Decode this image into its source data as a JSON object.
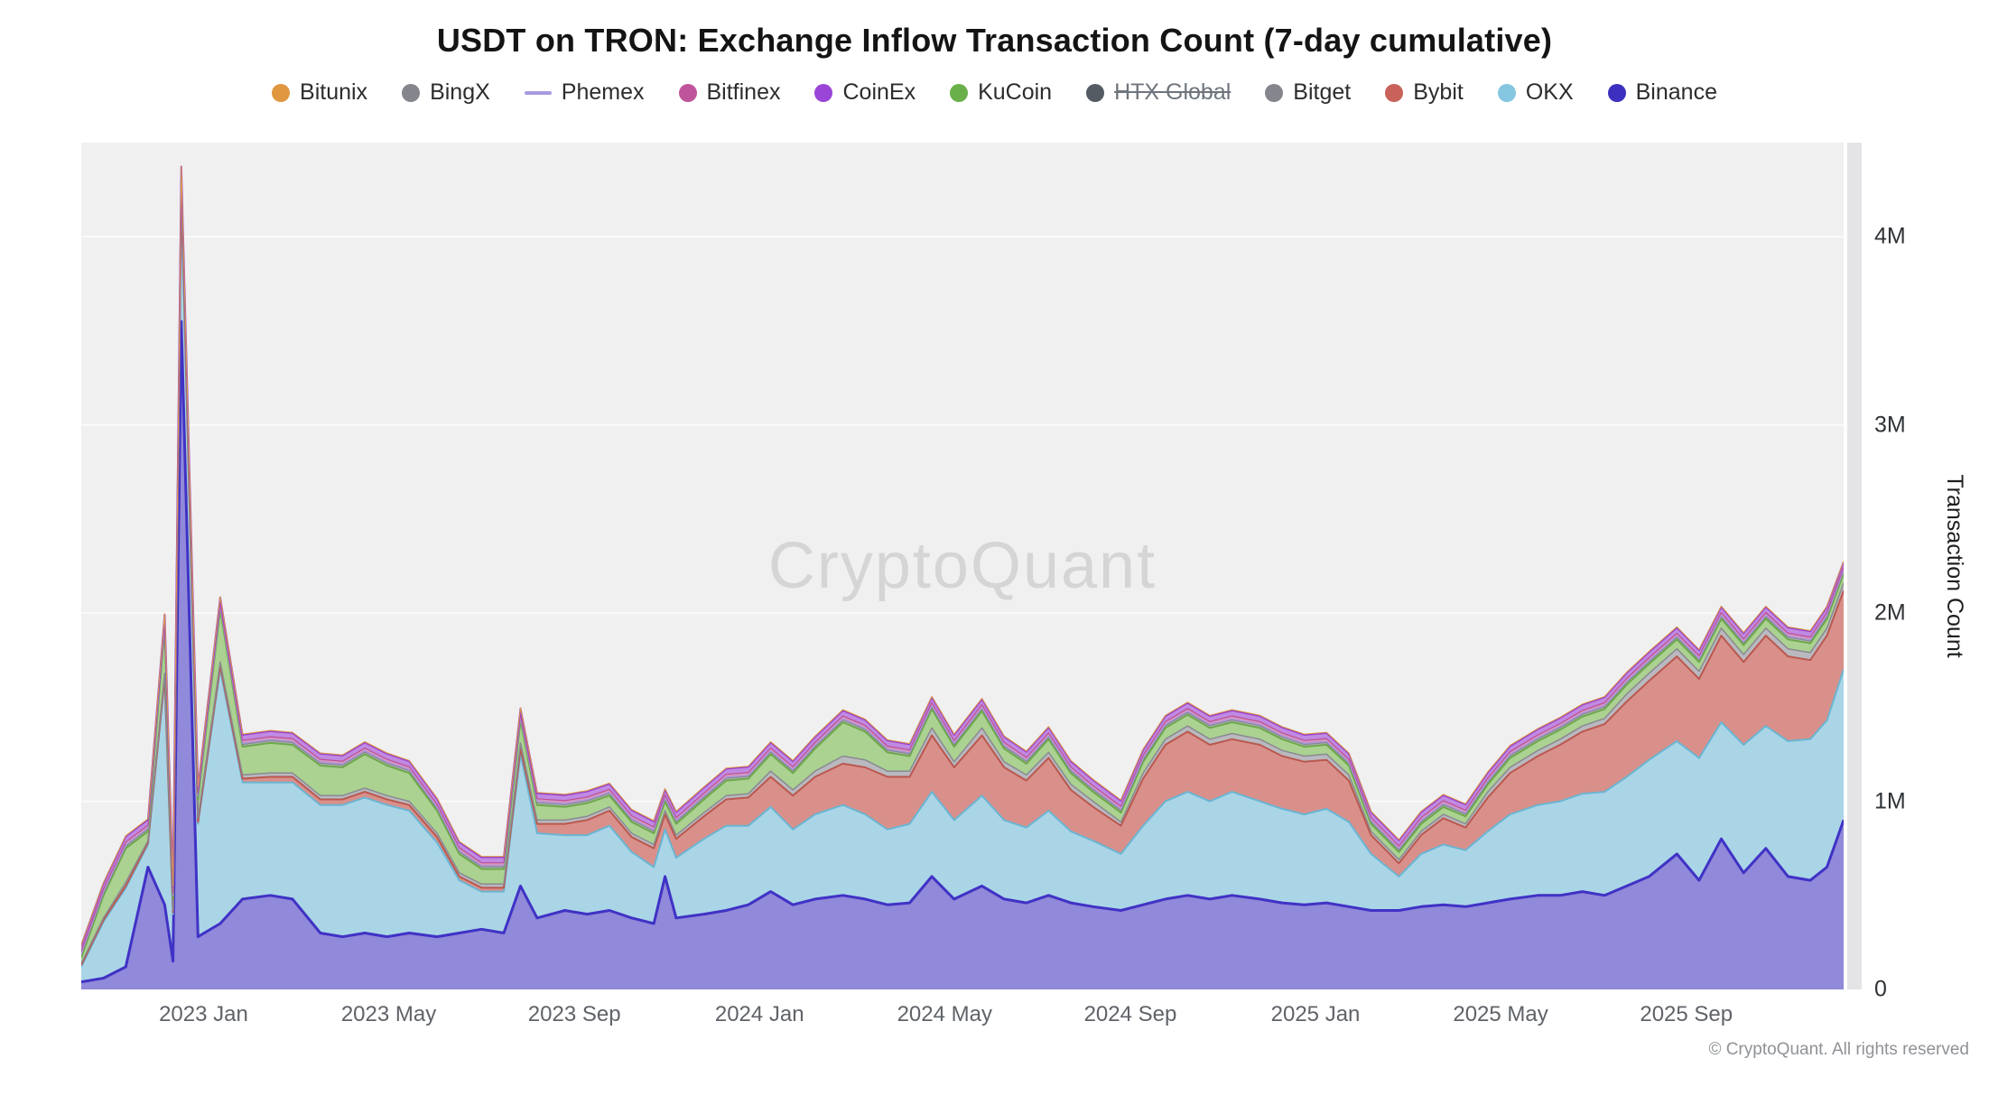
{
  "title": "USDT on TRON: Exchange Inflow Transaction Count (7-day cumulative)",
  "watermark": "CryptoQuant",
  "footer": "© CryptoQuant. All rights reserved",
  "y_axis_label": "Transaction Count",
  "legend": {
    "items": [
      {
        "label": "Bitunix",
        "color": "#e0973f",
        "type": "dot",
        "disabled": false
      },
      {
        "label": "BingX",
        "color": "#85858d",
        "type": "dot",
        "disabled": false
      },
      {
        "label": "Phemex",
        "color": "#a99ae0",
        "type": "line",
        "disabled": false
      },
      {
        "label": "Bitfinex",
        "color": "#c0549b",
        "type": "dot",
        "disabled": false
      },
      {
        "label": "CoinEx",
        "color": "#9b45d6",
        "type": "dot",
        "disabled": false
      },
      {
        "label": "KuCoin",
        "color": "#69b04a",
        "type": "dot",
        "disabled": false
      },
      {
        "label": "HTX Global",
        "color": "#555b63",
        "type": "dot",
        "disabled": true
      },
      {
        "label": "Bitget",
        "color": "#85858d",
        "type": "dot",
        "disabled": false
      },
      {
        "label": "Bybit",
        "color": "#c8625a",
        "type": "dot",
        "disabled": false
      },
      {
        "label": "OKX",
        "color": "#85c6e0",
        "type": "dot",
        "disabled": false
      },
      {
        "label": "Binance",
        "color": "#3d2fc0",
        "type": "dot",
        "disabled": false
      }
    ]
  },
  "chart_data": {
    "type": "area",
    "stacked": true,
    "title": "USDT on TRON: Exchange Inflow Transaction Count (7-day cumulative)",
    "ylabel": "Transaction Count",
    "unit": "millions",
    "x_unit": "decimal_year",
    "ylim": [
      0,
      4.5
    ],
    "grid": true,
    "legend_position": "top",
    "x": [
      2022.78,
      2022.82,
      2022.86,
      2022.9,
      2022.93,
      2022.945,
      2022.96,
      2022.99,
      2023.03,
      2023.07,
      2023.12,
      2023.16,
      2023.21,
      2023.25,
      2023.29,
      2023.33,
      2023.37,
      2023.42,
      2023.46,
      2023.5,
      2023.54,
      2023.57,
      2023.6,
      2023.65,
      2023.69,
      2023.73,
      2023.77,
      2023.81,
      2023.83,
      2023.85,
      2023.9,
      2023.94,
      2023.98,
      2024.02,
      2024.06,
      2024.1,
      2024.15,
      2024.19,
      2024.23,
      2024.27,
      2024.31,
      2024.35,
      2024.4,
      2024.44,
      2024.48,
      2024.52,
      2024.56,
      2024.6,
      2024.65,
      2024.69,
      2024.73,
      2024.77,
      2024.81,
      2024.85,
      2024.9,
      2024.94,
      2024.98,
      2025.02,
      2025.06,
      2025.1,
      2025.15,
      2025.19,
      2025.23,
      2025.27,
      2025.31,
      2025.35,
      2025.4,
      2025.44,
      2025.48,
      2025.52,
      2025.56,
      2025.6,
      2025.65,
      2025.69,
      2025.73,
      2025.77,
      2025.81,
      2025.85,
      2025.89,
      2025.92,
      2025.95
    ],
    "x_ticks": [
      {
        "label": "2023 Jan",
        "value": 2023.0
      },
      {
        "label": "2023 May",
        "value": 2023.333
      },
      {
        "label": "2023 Sep",
        "value": 2023.667
      },
      {
        "label": "2024 Jan",
        "value": 2024.0
      },
      {
        "label": "2024 May",
        "value": 2024.333
      },
      {
        "label": "2024 Sep",
        "value": 2024.667
      },
      {
        "label": "2025 Jan",
        "value": 2025.0
      },
      {
        "label": "2025 May",
        "value": 2025.333
      },
      {
        "label": "2025 Sep",
        "value": 2025.667
      }
    ],
    "y_ticks": [
      {
        "label": "0",
        "value": 0
      },
      {
        "label": "1M",
        "value": 1
      },
      {
        "label": "2M",
        "value": 2
      },
      {
        "label": "3M",
        "value": 3
      },
      {
        "label": "4M",
        "value": 4
      }
    ],
    "series": [
      {
        "name": "Binance",
        "fill": "#9189d9",
        "stroke": "#4032c5",
        "stroke_width": 3,
        "values": [
          0.04,
          0.06,
          0.12,
          0.65,
          0.45,
          0.15,
          3.55,
          0.28,
          0.35,
          0.48,
          0.5,
          0.48,
          0.3,
          0.28,
          0.3,
          0.28,
          0.3,
          0.28,
          0.3,
          0.32,
          0.3,
          0.55,
          0.38,
          0.42,
          0.4,
          0.42,
          0.38,
          0.35,
          0.6,
          0.38,
          0.4,
          0.42,
          0.45,
          0.52,
          0.45,
          0.48,
          0.5,
          0.48,
          0.45,
          0.46,
          0.6,
          0.48,
          0.55,
          0.48,
          0.46,
          0.5,
          0.46,
          0.44,
          0.42,
          0.45,
          0.48,
          0.5,
          0.48,
          0.5,
          0.48,
          0.46,
          0.45,
          0.46,
          0.44,
          0.42,
          0.42,
          0.44,
          0.45,
          0.44,
          0.46,
          0.48,
          0.5,
          0.5,
          0.52,
          0.5,
          0.55,
          0.6,
          0.72,
          0.58,
          0.8,
          0.62,
          0.75,
          0.6,
          0.58,
          0.65,
          0.9
        ]
      },
      {
        "name": "OKX",
        "fill": "#aad5e7",
        "stroke": "#6ab5d2",
        "stroke_width": 2,
        "values": [
          0.08,
          0.3,
          0.42,
          0.12,
          1.2,
          0.25,
          0.68,
          0.6,
          1.35,
          0.62,
          0.6,
          0.62,
          0.68,
          0.7,
          0.72,
          0.7,
          0.65,
          0.5,
          0.28,
          0.2,
          0.22,
          0.7,
          0.45,
          0.4,
          0.42,
          0.45,
          0.35,
          0.3,
          0.25,
          0.32,
          0.4,
          0.45,
          0.42,
          0.45,
          0.4,
          0.45,
          0.48,
          0.45,
          0.4,
          0.42,
          0.45,
          0.42,
          0.48,
          0.42,
          0.4,
          0.45,
          0.38,
          0.35,
          0.3,
          0.42,
          0.52,
          0.55,
          0.52,
          0.55,
          0.52,
          0.5,
          0.48,
          0.5,
          0.45,
          0.3,
          0.18,
          0.28,
          0.32,
          0.3,
          0.38,
          0.45,
          0.48,
          0.5,
          0.52,
          0.55,
          0.58,
          0.62,
          0.6,
          0.65,
          0.62,
          0.68,
          0.65,
          0.72,
          0.75,
          0.78,
          0.8
        ]
      },
      {
        "name": "Bybit",
        "fill": "#d9908a",
        "stroke": "#ba584f",
        "stroke_width": 2,
        "values": [
          0.01,
          0.01,
          0.01,
          0.01,
          0.01,
          0.01,
          0.01,
          0.01,
          0.02,
          0.02,
          0.03,
          0.03,
          0.03,
          0.03,
          0.03,
          0.03,
          0.03,
          0.03,
          0.02,
          0.02,
          0.02,
          0.03,
          0.05,
          0.06,
          0.08,
          0.08,
          0.08,
          0.1,
          0.08,
          0.1,
          0.12,
          0.14,
          0.15,
          0.16,
          0.18,
          0.2,
          0.22,
          0.25,
          0.28,
          0.25,
          0.3,
          0.28,
          0.32,
          0.28,
          0.25,
          0.28,
          0.22,
          0.18,
          0.15,
          0.25,
          0.3,
          0.32,
          0.3,
          0.28,
          0.3,
          0.28,
          0.28,
          0.26,
          0.22,
          0.1,
          0.07,
          0.1,
          0.14,
          0.12,
          0.18,
          0.22,
          0.26,
          0.3,
          0.33,
          0.36,
          0.4,
          0.42,
          0.45,
          0.42,
          0.46,
          0.44,
          0.48,
          0.45,
          0.42,
          0.45,
          0.42
        ]
      },
      {
        "name": "Bitget",
        "fill": "#b9b9bf",
        "stroke": "#8a8a92",
        "stroke_width": 1.5,
        "values": [
          0.01,
          0.01,
          0.02,
          0.01,
          0.02,
          0.01,
          0.02,
          0.02,
          0.02,
          0.02,
          0.02,
          0.02,
          0.02,
          0.02,
          0.02,
          0.02,
          0.02,
          0.02,
          0.02,
          0.02,
          0.02,
          0.03,
          0.02,
          0.02,
          0.02,
          0.02,
          0.02,
          0.02,
          0.02,
          0.02,
          0.02,
          0.02,
          0.02,
          0.03,
          0.03,
          0.03,
          0.04,
          0.04,
          0.03,
          0.03,
          0.04,
          0.03,
          0.04,
          0.03,
          0.03,
          0.03,
          0.03,
          0.03,
          0.02,
          0.03,
          0.03,
          0.03,
          0.03,
          0.03,
          0.03,
          0.03,
          0.03,
          0.03,
          0.03,
          0.02,
          0.02,
          0.02,
          0.02,
          0.02,
          0.03,
          0.03,
          0.03,
          0.03,
          0.03,
          0.03,
          0.04,
          0.04,
          0.04,
          0.04,
          0.04,
          0.04,
          0.04,
          0.04,
          0.04,
          0.04,
          0.04
        ]
      },
      {
        "name": "HTX Global",
        "fill": "#9aa0a8",
        "stroke": "#555b63",
        "stroke_width": 1,
        "disabled": true,
        "value": 0
      },
      {
        "name": "KuCoin",
        "fill": "#abd290",
        "stroke": "#6da84c",
        "stroke_width": 2,
        "values": [
          0.03,
          0.12,
          0.18,
          0.05,
          0.25,
          0.06,
          0.05,
          0.1,
          0.28,
          0.15,
          0.16,
          0.15,
          0.16,
          0.15,
          0.18,
          0.16,
          0.15,
          0.12,
          0.1,
          0.08,
          0.08,
          0.12,
          0.08,
          0.07,
          0.07,
          0.06,
          0.06,
          0.06,
          0.05,
          0.06,
          0.07,
          0.08,
          0.08,
          0.09,
          0.09,
          0.12,
          0.18,
          0.15,
          0.1,
          0.08,
          0.1,
          0.08,
          0.09,
          0.07,
          0.06,
          0.07,
          0.06,
          0.05,
          0.05,
          0.06,
          0.06,
          0.06,
          0.06,
          0.06,
          0.06,
          0.06,
          0.05,
          0.05,
          0.05,
          0.04,
          0.04,
          0.04,
          0.04,
          0.04,
          0.04,
          0.05,
          0.05,
          0.05,
          0.05,
          0.05,
          0.05,
          0.05,
          0.05,
          0.05,
          0.05,
          0.05,
          0.05,
          0.05,
          0.05,
          0.05,
          0.05
        ]
      },
      {
        "name": "BingX",
        "fill": "#b3b3ba",
        "stroke": "#85858d",
        "stroke_width": 1.2,
        "value": 0.012
      },
      {
        "name": "Phemex",
        "fill": "#cfc6ef",
        "stroke": "#a696de",
        "stroke_width": 1.2,
        "value": 0.006
      },
      {
        "name": "Bitfinex",
        "fill": "#d795c0",
        "stroke": "#bb4f97",
        "stroke_width": 1.2,
        "value": 0.015
      },
      {
        "name": "CoinEx",
        "fill": "#c08ae3",
        "stroke": "#9a3fd0",
        "stroke_width": 2,
        "value": 0.03
      },
      {
        "name": "Bitunix",
        "fill": "#eec591",
        "stroke": "#dd9b43",
        "stroke_width": 1,
        "value": 0.004
      }
    ]
  }
}
